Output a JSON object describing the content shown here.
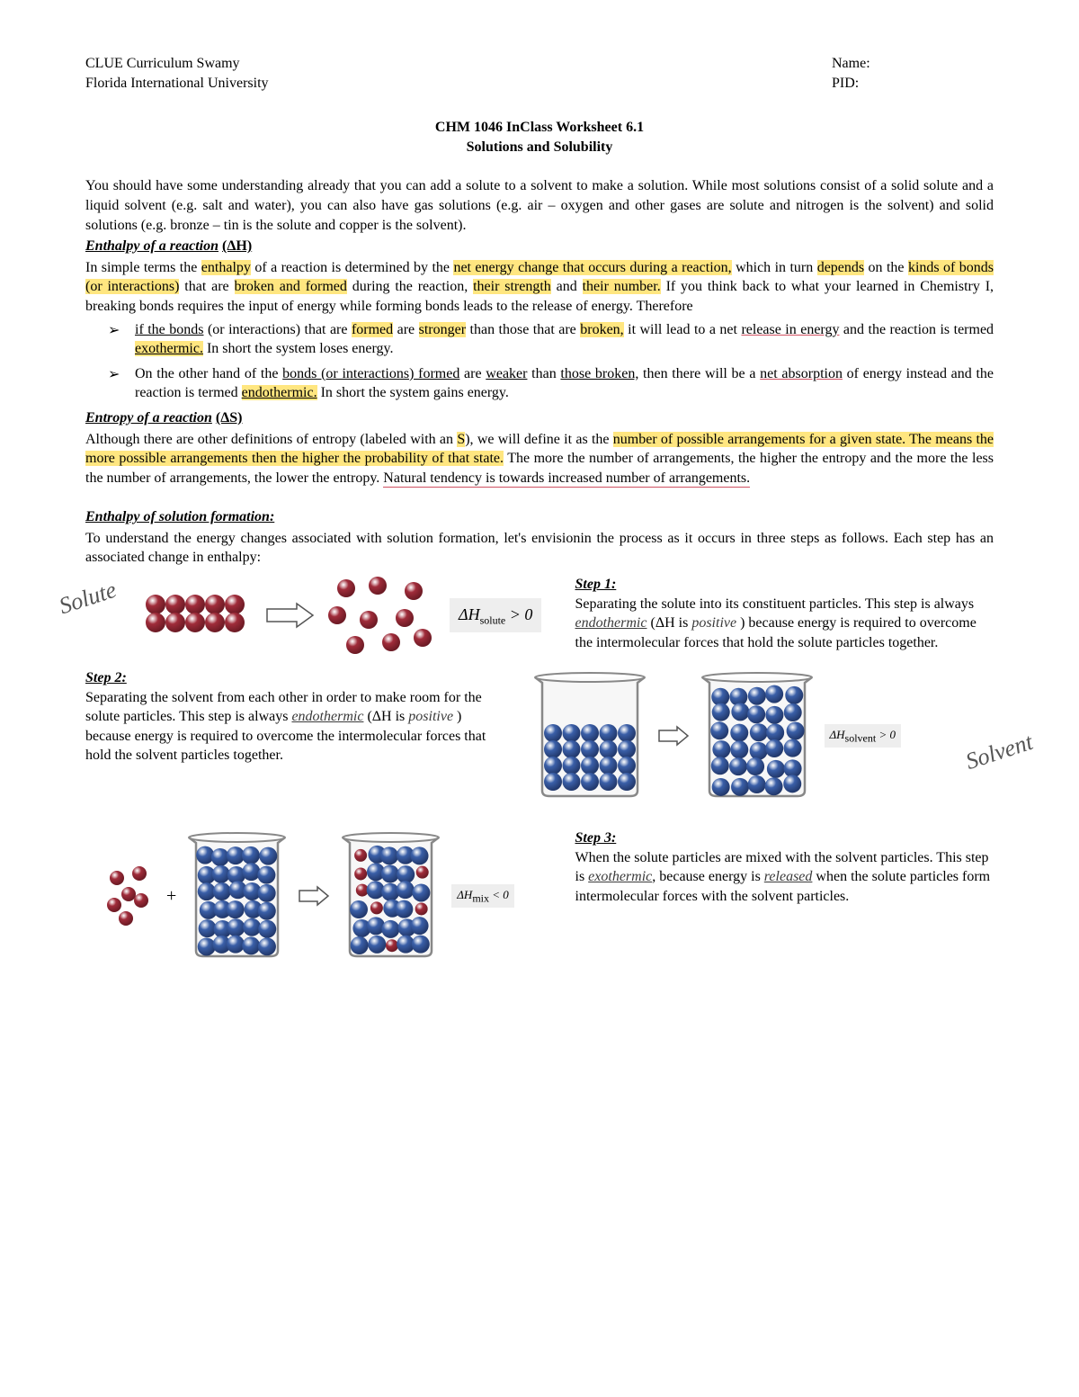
{
  "header": {
    "left1": "CLUE Curriculum Swamy",
    "left2": "Florida International University",
    "right1": "Name:",
    "right2": "PID:"
  },
  "title": {
    "line1": "CHM 1046 InClass Worksheet 6.1",
    "line2": "Solutions and Solubility"
  },
  "intro": "You should have some understanding already that you can add a solute to a solvent to make a solution. While most solutions consist of a solid solute and a liquid solvent (e.g. salt and water), you can also have gas solutions (e.g. air – oxygen and other gases are solute and nitrogen is the solvent) and solid solutions (e.g. bronze – tin is the solute and copper is the solvent).",
  "enthalpy": {
    "heading": "Enthalpy of a reaction",
    "symbol": "(ΔH)",
    "para_pre": "In simple terms the ",
    "w_enthalpy": "enthalpy",
    "para_a": " of a reaction is determined by the ",
    "w_net": "net energy change that occurs during a reaction,",
    "para_b": " which in turn ",
    "w_depends": "depends",
    "para_c": " on the ",
    "w_kinds": "kinds of bonds (or interactions)",
    "para_d": " that are ",
    "w_broken": "broken and formed",
    "para_e": " during the reaction, ",
    "w_strength": "their strength",
    "para_f": " and ",
    "w_number": "their number.",
    "para_g": " If you think back to what your learned in Chemistry I, breaking bonds requires the input of energy while forming bonds leads to the release of energy. Therefore",
    "bullet1_a": "if the bonds",
    "bullet1_b": " (or interactions) that are ",
    "bullet1_formed": "formed",
    "bullet1_c": " are ",
    "bullet1_stronger": "stronger",
    "bullet1_d": " than those that are ",
    "bullet1_broken": "broken,",
    "bullet1_e": " it will lead to a net ",
    "bullet1_release": "release in energy",
    "bullet1_f": " and the reaction is termed ",
    "bullet1_exo": "exothermic.",
    "bullet1_g": " In short the system loses energy.",
    "bullet2_a": "On the other hand of the ",
    "bullet2_bonds": "bonds (or interactions) formed",
    "bullet2_b": " are ",
    "bullet2_weaker": "weaker",
    "bullet2_c": " than ",
    "bullet2_those": "those broken,",
    "bullet2_d": " then there will be a ",
    "bullet2_net": "net absorption",
    "bullet2_e": " of energy instead and the reaction is termed ",
    "bullet2_endo": "endothermic.",
    "bullet2_f": " In short the system gains energy."
  },
  "entropy": {
    "heading": "Entropy of a reaction",
    "symbol": "(ΔS)",
    "para_a": "Although there are other definitions of entropy (labeled with an ",
    "s": "S",
    "para_b": "), we will define it as the ",
    "hl1": "number of possible arrangements for a given state. The means the more possible arrangements then the higher the probability of that state.",
    "para_c": " The more the number of arrangements, the higher the entropy and the more the less the number of arrangements, the lower the entropy. ",
    "red": "Natural tendency is towards increased number of arrangements."
  },
  "solution": {
    "heading": "Enthalpy of solution formation:",
    "intro": "To understand the energy changes associated with solution formation, let's envisionin the process as it occurs in three steps as follows. Each step has an associated change in enthalpy:",
    "solute_label": "Solute",
    "solvent_label": "Solvent",
    "delta_solute": "ΔH",
    "delta_solute_sub": "solute",
    "delta_solute_op": " > 0",
    "delta_solvent_sub": "solvent",
    "delta_solvent_op": " > 0",
    "delta_mix_sub": "mix",
    "delta_mix_op": " < 0",
    "step1_head": "Step 1:",
    "step1_a": "Separating the solute into its constituent particles. This step is always ",
    "step1_fill1": "endothermic",
    "step1_b": " (ΔH is ",
    "step1_fill2": "positive",
    "step1_c": " ) because energy is required to overcome the intermolecular forces that hold the solute particles together.",
    "step2_head": "Step 2:",
    "step2_a": "Separating the solvent from each other in order to make room for the solute particles. This step is always ",
    "step2_fill1": "endothermic",
    "step2_b": " (ΔH is ",
    "step2_fill2": "positive",
    "step2_c": "    ) because energy is required to overcome the intermolecular forces that hold the solvent particles together.",
    "step3_head": "Step 3:",
    "step3_a": "When the solute particles are mixed with the solvent particles. This step is ",
    "step3_fill1": "exothermic",
    "step3_b": ", because energy is ",
    "step3_fill2": "released",
    "step3_c": " when the solute particles form intermolecular forces with the solvent particles."
  },
  "colors": {
    "solute": "#a02c3a",
    "solute_dark": "#6b1a24",
    "solvent": "#3a5fa8",
    "solvent_dark": "#22386b",
    "beaker_stroke": "#888888",
    "beaker_fill": "#f0f0f0",
    "arrow_fill": "#ffffff",
    "arrow_stroke": "#555555",
    "highlight": "#ffe680"
  }
}
